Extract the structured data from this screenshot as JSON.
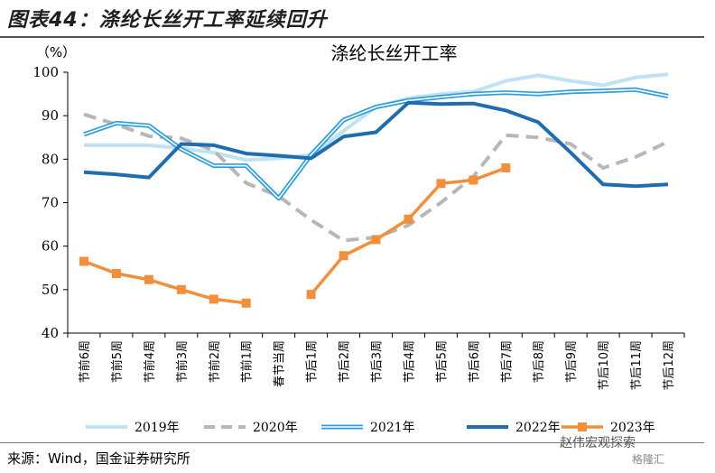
{
  "figure_title": "图表44：涤纶长丝开工率延续回升",
  "source": "来源：Wind，国金证券研究所",
  "watermark": "赵伟宏观探索",
  "watermark2": "格隆汇",
  "chart_data": {
    "type": "line",
    "title": "涤纶长丝开工率",
    "ylabel": "（%）",
    "ylim": [
      40,
      100
    ],
    "yticks": [
      40,
      50,
      60,
      70,
      80,
      90,
      100
    ],
    "grid": false,
    "legend_position": "bottom",
    "categories": [
      "节前6周",
      "节前5周",
      "节前4周",
      "节前3周",
      "节前2周",
      "节前1周",
      "春节当周",
      "节后1周",
      "节后2周",
      "节后3周",
      "节后4周",
      "节后5周",
      "节后6周",
      "节后7周",
      "节后8周",
      "节后9周",
      "节后10周",
      "节后11周",
      "节后12周"
    ],
    "series": [
      {
        "name": "2019年",
        "color": "#bfe2f5",
        "style": "solid",
        "values": [
          83.2,
          83.2,
          83.2,
          82.5,
          81.5,
          79.8,
          80.2,
          81.0,
          86.5,
          92.0,
          94.0,
          95.0,
          95.5,
          98.0,
          99.3,
          98.0,
          97.0,
          98.8,
          99.5
        ]
      },
      {
        "name": "2020年",
        "color": "#b7b7b7",
        "style": "dashed",
        "values": [
          90.3,
          88.0,
          85.3,
          84.8,
          82.0,
          74.5,
          71.5,
          66.0,
          61.3,
          62.0,
          64.8,
          70.0,
          76.0,
          85.5,
          85.0,
          83.5,
          78.0,
          80.5,
          84.0
        ]
      },
      {
        "name": "2021年",
        "color": "#2e9fd8",
        "style": "double",
        "values": [
          85.7,
          88.3,
          87.7,
          82.3,
          78.5,
          78.5,
          71.0,
          81.0,
          89.0,
          92.0,
          93.5,
          94.3,
          95.0,
          95.3,
          95.0,
          95.5,
          95.7,
          96.0,
          94.5
        ]
      },
      {
        "name": "2022年",
        "color": "#1f6cb0",
        "style": "thick",
        "values": [
          77.0,
          76.5,
          75.8,
          83.5,
          83.2,
          81.3,
          80.8,
          80.2,
          85.2,
          86.2,
          93.0,
          92.7,
          92.8,
          91.2,
          88.5,
          81.5,
          74.2,
          73.8,
          74.2
        ]
      },
      {
        "name": "2023年",
        "color": "#f28f3c",
        "style": "marker",
        "values": [
          56.5,
          53.7,
          52.3,
          50.0,
          47.8,
          46.9,
          null,
          48.9,
          57.8,
          61.5,
          66.2,
          74.4,
          75.2,
          78.0,
          null,
          null,
          null,
          null,
          null
        ]
      }
    ]
  }
}
